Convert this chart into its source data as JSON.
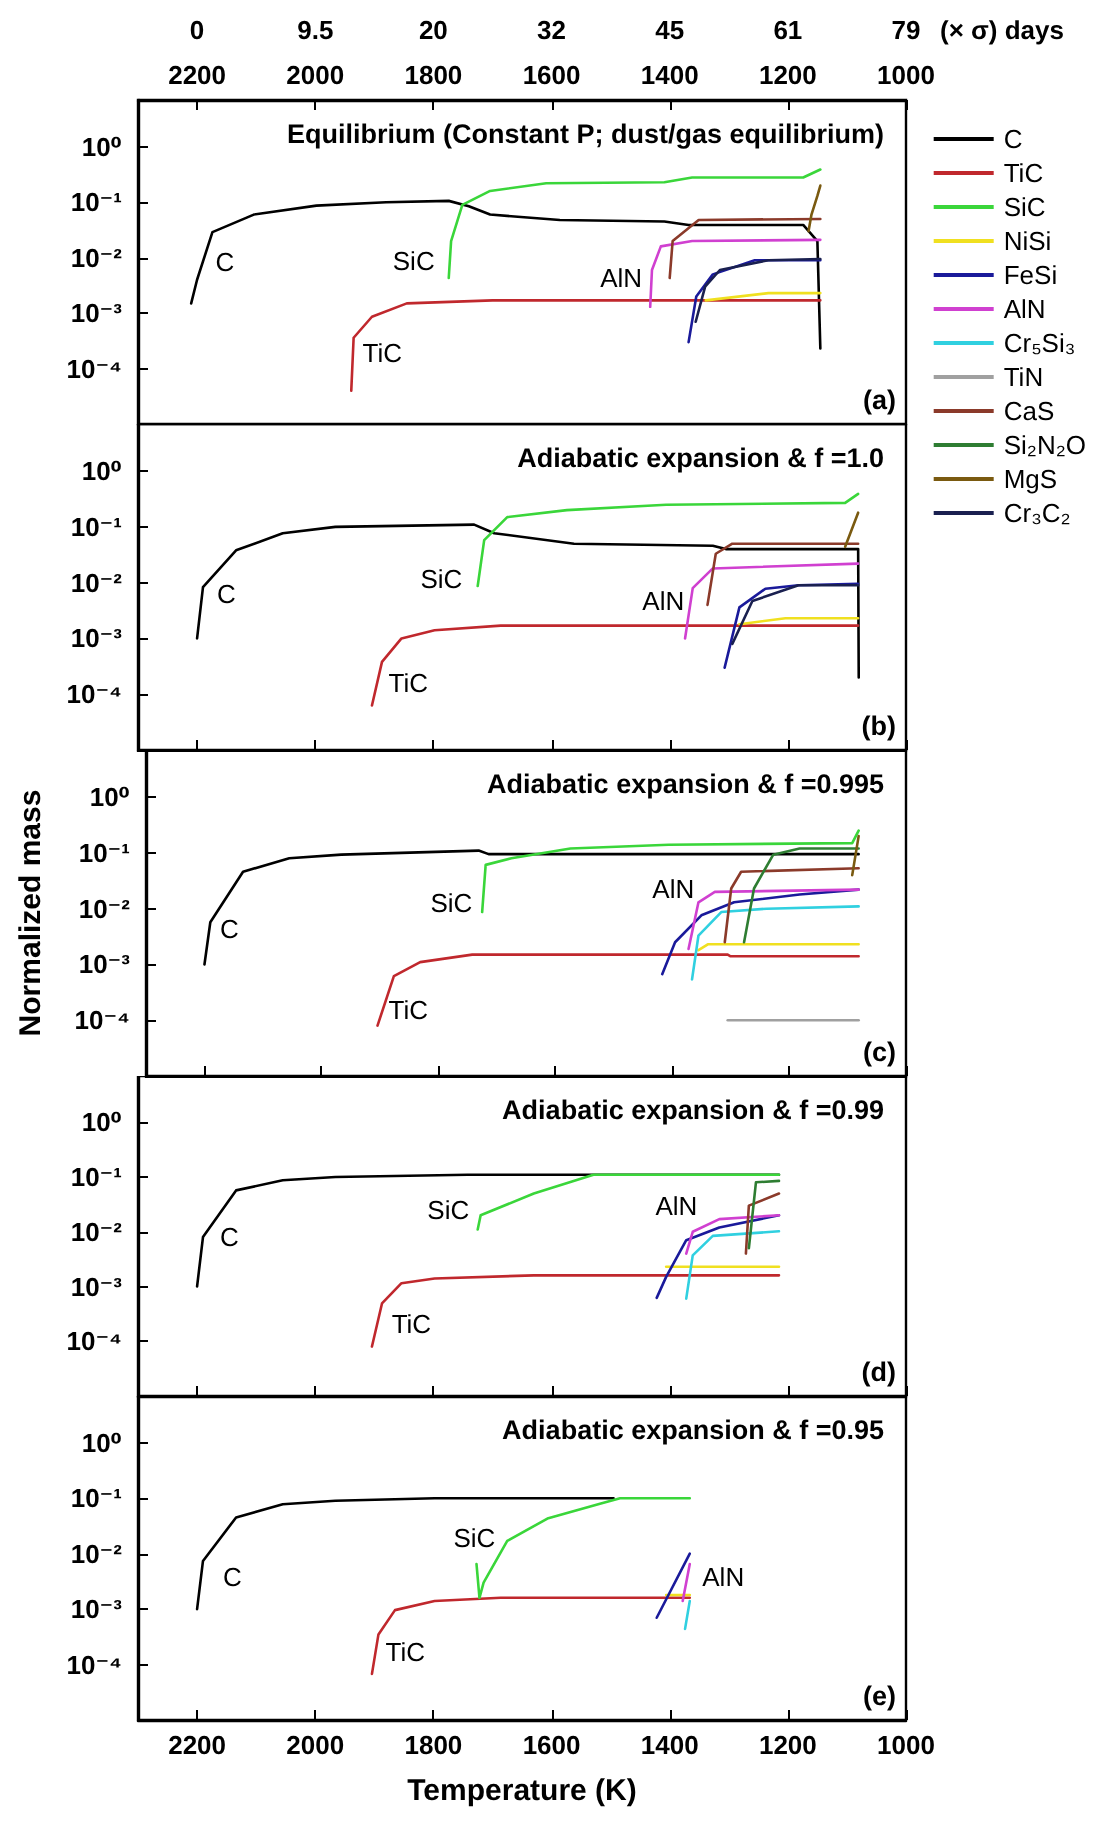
{
  "chart_data": [
    {
      "type": "line",
      "title": "Equilibrium (Constant P; dust/gas equilibrium)",
      "log": true,
      "xlim": [
        2300,
        1000
      ],
      "xticks": [
        2200,
        2000,
        1800,
        1600,
        1400,
        1200,
        1000
      ],
      "ylim": [
        1e-05,
        7
      ],
      "yticks": [
        {
          "value": 1,
          "label": "10⁰"
        },
        {
          "value": 0.1,
          "label": "10⁻¹"
        },
        {
          "value": 0.01,
          "label": "10⁻²"
        },
        {
          "value": 0.001,
          "label": "10⁻³"
        },
        {
          "value": 0.0001,
          "label": "10⁻⁴"
        }
      ],
      "legend": "right",
      "series": [
        {
          "name": "C",
          "color": "#000000",
          "x": [
            2210,
            2200,
            2174,
            2104,
            1998,
            1880,
            1774,
            1740,
            1704,
            1586,
            1409,
            1368,
            1174,
            1150,
            1145
          ],
          "values": [
            0.0015,
            0.004,
            0.029,
            0.06,
            0.087,
            0.1,
            0.106,
            0.085,
            0.06,
            0.048,
            0.045,
            0.039,
            0.039,
            0.02,
            0.00023
          ]
        },
        {
          "name": "TiC",
          "color": "#c0282d",
          "x": [
            1939,
            1935,
            1904,
            1845,
            1700,
            1145
          ],
          "values": [
            4e-05,
            0.00036,
            0.00086,
            0.0015,
            0.0017,
            0.0017
          ]
        },
        {
          "name": "SiC",
          "color": "#3ad63a",
          "x": [
            1774,
            1770,
            1751,
            1704,
            1609,
            1409,
            1362,
            1174,
            1145
          ],
          "values": [
            0.0043,
            0.02,
            0.09,
            0.16,
            0.22,
            0.23,
            0.28,
            0.28,
            0.39
          ]
        },
        {
          "name": "NiSi",
          "color": "#f0e020",
          "x": [
            1339,
            1233,
            1145
          ],
          "values": [
            0.0017,
            0.0023,
            0.0023
          ]
        },
        {
          "name": "FeSi",
          "color": "#1a1a9a",
          "x": [
            1368,
            1355,
            1327,
            1256,
            1145
          ],
          "values": [
            0.0003,
            0.002,
            0.005,
            0.009,
            0.009
          ]
        },
        {
          "name": "AlN",
          "color": "#d040d0",
          "x": [
            1433,
            1430,
            1415,
            1362,
            1145
          ],
          "values": [
            0.0013,
            0.006,
            0.016,
            0.02,
            0.021
          ]
        },
        {
          "name": "Cr₅Si₃",
          "color": "#30d0e0",
          "values": [
            null
          ]
        },
        {
          "name": "TiN",
          "color": "#a0a0a0",
          "values": [
            null
          ]
        },
        {
          "name": "CaS",
          "color": "#8b3a2a",
          "x": [
            1400,
            1395,
            1351,
            1145
          ],
          "values": [
            0.0043,
            0.02,
            0.048,
            0.05
          ]
        },
        {
          "name": "Si₂N₂O",
          "color": "#2e7d32",
          "values": [
            null
          ]
        },
        {
          "name": "MgS",
          "color": "#7a5a10",
          "x": [
            1165,
            1160,
            1150,
            1145
          ],
          "values": [
            0.03,
            0.06,
            0.13,
            0.2
          ]
        },
        {
          "name": "Cr₃C₂",
          "color": "#1a2050",
          "x": [
            1356,
            1340,
            1315,
            1233,
            1145
          ],
          "values": [
            0.0007,
            0.003,
            0.006,
            0.009,
            0.0095
          ]
        }
      ],
      "annotations": [
        "C",
        "SiC",
        "TiC",
        "AlN",
        "(a)",
        "0",
        "9.5",
        "20",
        "32",
        "45",
        "61",
        "79",
        "(× σ) days"
      ]
    },
    {
      "type": "line",
      "title": "Adiabatic expansion & f =1.0",
      "log": true,
      "xlim": [
        2300,
        1000
      ],
      "xticks": [
        2200,
        2000,
        1800,
        1600,
        1400,
        1200,
        1000
      ],
      "ylim": [
        1e-05,
        7
      ],
      "yticks": [
        {
          "value": 1,
          "label": "10⁰"
        },
        {
          "value": 0.1,
          "label": "10⁻¹"
        },
        {
          "value": 0.01,
          "label": "10⁻²"
        },
        {
          "value": 0.001,
          "label": "10⁻³"
        },
        {
          "value": 0.0001,
          "label": "10⁻⁴"
        }
      ],
      "tick_labels": "y",
      "series": [
        {
          "color": "#000000",
          "x": [
            2200,
            2190,
            2134,
            2055,
            1966,
            1731,
            1697,
            1562,
            1327,
            1305,
            1081,
            1080
          ],
          "values": [
            0.001,
            0.0083,
            0.038,
            0.077,
            0.1,
            0.11,
            0.077,
            0.05,
            0.046,
            0.04,
            0.04,
            0.0002
          ]
        },
        {
          "color": "#c0282d",
          "x": [
            1904,
            1887,
            1854,
            1798,
            1686,
            1081
          ],
          "values": [
            6.3e-05,
            0.00038,
            0.001,
            0.0014,
            0.0017,
            0.0017
          ]
        },
        {
          "color": "#3ad63a",
          "x": [
            1725,
            1714,
            1675,
            1574,
            1406,
            1103,
            1081
          ],
          "values": [
            0.0087,
            0.058,
            0.15,
            0.2,
            0.25,
            0.27,
            0.39
          ]
        },
        {
          "color": "#f0e020",
          "x": [
            1282,
            1204,
            1081
          ],
          "values": [
            0.0018,
            0.0023,
            0.0023
          ]
        },
        {
          "color": "#1a1a9a",
          "x": [
            1307,
            1282,
            1238,
            1182,
            1081
          ],
          "values": [
            0.0003,
            0.0036,
            0.0078,
            0.009,
            0.0095
          ]
        },
        {
          "color": "#d040d0",
          "x": [
            1374,
            1361,
            1327,
            1081
          ],
          "values": [
            0.001,
            0.008,
            0.018,
            0.022
          ]
        },
        {
          "color": "#8b3a2a",
          "x": [
            1336,
            1322,
            1294,
            1081
          ],
          "values": [
            0.004,
            0.033,
            0.05,
            0.05
          ]
        },
        {
          "color": "#7a5a10",
          "x": [
            1103,
            1081
          ],
          "values": [
            0.044,
            0.18
          ]
        },
        {
          "color": "#1a2050",
          "x": [
            1294,
            1260,
            1182,
            1081
          ],
          "values": [
            0.0008,
            0.0047,
            0.009,
            0.009
          ]
        }
      ],
      "annotations": [
        "C",
        "SiC",
        "TiC",
        "AlN",
        "(b)"
      ]
    },
    {
      "type": "line",
      "title": "Adiabatic expansion & f =0.995",
      "ylabel": "Normalized mass",
      "log": true,
      "xlim": [
        2300,
        1000
      ],
      "xticks": [
        2200,
        2000,
        1800,
        1600,
        1400,
        1200,
        1000
      ],
      "ylim": [
        1e-05,
        7
      ],
      "yticks": [
        {
          "value": 1,
          "label": "10⁰"
        },
        {
          "value": 0.1,
          "label": "10⁻¹"
        },
        {
          "value": 0.01,
          "label": "10⁻²"
        },
        {
          "value": 0.001,
          "label": "10⁻³"
        },
        {
          "value": 0.0001,
          "label": "10⁻⁴"
        }
      ],
      "tick_labels": "y",
      "series": [
        {
          "color": "#000000",
          "x": [
            2200,
            2190,
            2134,
            2055,
            1966,
            1731,
            1714,
            1081
          ],
          "values": [
            0.001,
            0.0057,
            0.046,
            0.08,
            0.093,
            0.11,
            0.095,
            0.095
          ]
        },
        {
          "color": "#c0282d",
          "x": [
            1904,
            1876,
            1831,
            1742,
            1305,
            1300,
            1081
          ],
          "values": [
            8e-05,
            0.00062,
            0.0011,
            0.0015,
            0.0015,
            0.0014,
            0.0014
          ]
        },
        {
          "color": "#3ad63a",
          "x": [
            1725,
            1719,
            1675,
            1574,
            1406,
            1092,
            1081
          ],
          "values": [
            0.0087,
            0.061,
            0.08,
            0.12,
            0.14,
            0.15,
            0.25
          ]
        },
        {
          "color": "#f0e020",
          "x": [
            1355,
            1339,
            1081
          ],
          "values": [
            0.0018,
            0.0023,
            0.0023
          ]
        },
        {
          "color": "#1a1a9a",
          "x": [
            1417,
            1395,
            1350,
            1294,
            1182,
            1081
          ],
          "values": [
            0.00067,
            0.0025,
            0.0076,
            0.013,
            0.018,
            0.022
          ]
        },
        {
          "color": "#d040d0",
          "x": [
            1372,
            1355,
            1327,
            1081
          ],
          "values": [
            0.0019,
            0.013,
            0.02,
            0.022
          ]
        },
        {
          "color": "#30d0e0",
          "x": [
            1366,
            1355,
            1316,
            1238,
            1081
          ],
          "values": [
            0.00054,
            0.0033,
            0.0087,
            0.01,
            0.011
          ]
        },
        {
          "color": "#a0a0a0",
          "x": [
            1305,
            1081
          ],
          "values": [
            0.0001,
            0.0001
          ]
        },
        {
          "color": "#8b3a2a",
          "x": [
            1310,
            1299,
            1282,
            1081
          ],
          "values": [
            0.0025,
            0.023,
            0.046,
            0.053
          ]
        },
        {
          "color": "#2e7d32",
          "x": [
            1277,
            1260,
            1227,
            1182,
            1081
          ],
          "values": [
            0.0025,
            0.023,
            0.093,
            0.12,
            0.12
          ]
        },
        {
          "color": "#7a5a10",
          "x": [
            1092,
            1081
          ],
          "values": [
            0.04,
            0.2
          ]
        }
      ],
      "annotations": [
        "C",
        "SiC",
        "TiC",
        "AlN",
        "(c)"
      ]
    },
    {
      "type": "line",
      "title": "Adiabatic expansion & f =0.99",
      "log": true,
      "xlim": [
        2300,
        1000
      ],
      "xticks": [
        2200,
        2000,
        1800,
        1600,
        1400,
        1200,
        1000
      ],
      "ylim": [
        1e-05,
        7
      ],
      "yticks": [
        {
          "value": 1,
          "label": "10⁰"
        },
        {
          "value": 0.1,
          "label": "10⁻¹"
        },
        {
          "value": 0.01,
          "label": "10⁻²"
        },
        {
          "value": 0.001,
          "label": "10⁻³"
        },
        {
          "value": 0.0001,
          "label": "10⁻⁴"
        }
      ],
      "tick_labels": "y",
      "series": [
        {
          "color": "#000000",
          "x": [
            2200,
            2190,
            2134,
            2055,
            1966,
            1742,
            1215
          ],
          "values": [
            0.001,
            0.008,
            0.057,
            0.087,
            0.1,
            0.11,
            0.11
          ]
        },
        {
          "color": "#c0282d",
          "x": [
            1904,
            1887,
            1854,
            1798,
            1630,
            1215
          ],
          "values": [
            8e-05,
            0.00049,
            0.00115,
            0.0014,
            0.0016,
            0.0016
          ]
        },
        {
          "color": "#3ad63a",
          "x": [
            1725,
            1720,
            1630,
            1529,
            1215
          ],
          "values": [
            0.011,
            0.02,
            0.05,
            0.11,
            0.11
          ]
        },
        {
          "color": "#f0e020",
          "x": [
            1406,
            1215
          ],
          "values": [
            0.0023,
            0.0023
          ]
        },
        {
          "color": "#1a1a9a",
          "x": [
            1422,
            1406,
            1372,
            1316,
            1215
          ],
          "values": [
            0.00062,
            0.0015,
            0.007,
            0.012,
            0.02
          ]
        },
        {
          "color": "#d040d0",
          "x": [
            1372,
            1361,
            1316,
            1215
          ],
          "values": [
            0.004,
            0.01,
            0.017,
            0.02
          ]
        },
        {
          "color": "#30d0e0",
          "x": [
            1372,
            1361,
            1327,
            1215
          ],
          "values": [
            0.0006,
            0.0037,
            0.0084,
            0.0102
          ]
        },
        {
          "color": "#8b3a2a",
          "x": [
            1271,
            1266,
            1215
          ],
          "values": [
            0.004,
            0.03,
            0.05
          ]
        },
        {
          "color": "#2e7d32",
          "x": [
            1266,
            1254,
            1215
          ],
          "values": [
            0.005,
            0.08,
            0.085
          ]
        }
      ],
      "annotations": [
        "C",
        "SiC",
        "TiC",
        "AlN",
        "(d)"
      ]
    },
    {
      "type": "line",
      "title": "Adiabatic expansion & f =0.95",
      "xlabel": "Temperature (K)",
      "log": true,
      "xlim": [
        2300,
        1000
      ],
      "xticks": [
        2200,
        2000,
        1800,
        1600,
        1400,
        1200,
        1000
      ],
      "ylim": [
        1e-05,
        7
      ],
      "yticks": [
        {
          "value": 1,
          "label": "10⁰"
        },
        {
          "value": 0.1,
          "label": "10⁻¹"
        },
        {
          "value": 0.01,
          "label": "10⁻²"
        },
        {
          "value": 0.001,
          "label": "10⁻³"
        },
        {
          "value": 0.0001,
          "label": "10⁻⁴"
        }
      ],
      "series": [
        {
          "color": "#000000",
          "x": [
            2200,
            2190,
            2134,
            2055,
            1966,
            1798,
            1495
          ],
          "values": [
            0.001,
            0.0074,
            0.045,
            0.078,
            0.09,
            0.1,
            0.1
          ]
        },
        {
          "color": "#c0282d",
          "x": [
            1904,
            1893,
            1865,
            1798,
            1686,
            1366
          ],
          "values": [
            6.8e-05,
            0.00035,
            0.00096,
            0.0014,
            0.0016,
            0.0016
          ]
        },
        {
          "color": "#3ad63a",
          "x": [
            1727,
            1722,
            1715,
            1675,
            1607,
            1518,
            1484,
            1366
          ],
          "values": [
            0.0065,
            0.0016,
            0.003,
            0.017,
            0.043,
            0.08,
            0.1,
            0.1
          ]
        },
        {
          "color": "#f0e020",
          "x": [
            1406,
            1366
          ],
          "values": [
            0.0018,
            0.0018
          ]
        },
        {
          "color": "#1a1a9a",
          "x": [
            1422,
            1366
          ],
          "values": [
            0.0007,
            0.01
          ]
        },
        {
          "color": "#d040d0",
          "x": [
            1378,
            1366
          ],
          "values": [
            0.0014,
            0.0065
          ]
        },
        {
          "color": "#30d0e0",
          "x": [
            1374,
            1366
          ],
          "values": [
            0.00044,
            0.0014
          ]
        }
      ],
      "annotations": [
        "C",
        "SiC",
        "TiC",
        "AlN",
        "(e)"
      ]
    }
  ]
}
